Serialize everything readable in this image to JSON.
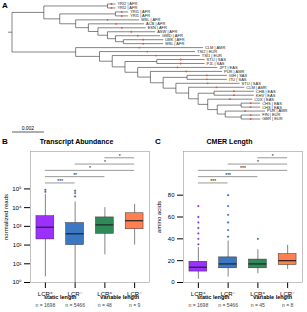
{
  "chart_data": [
    {
      "type": "tree",
      "panel": "A",
      "scale_bar": 0.002,
      "tree": {
        "children": [
          {
            "length": 0.002,
            "children": [
              {
                "length": 0.004,
                "children": [
                  {
                    "name": "YRI2 | AFR",
                    "length": 0.0005
                  },
                  {
                    "name": "YRI2 | AFR",
                    "length": 0.0005
                  }
                ]
              },
              {
                "length": 0.001,
                "children": [
                  {
                    "length": 0.0035,
                    "children": [
                      {
                        "name": "YRI1 | AFR",
                        "length": 0.0008
                      },
                      {
                        "name": "YRI1 | AFR",
                        "length": 0.0008
                      }
                    ]
                  },
                  {
                    "length": 0.001,
                    "children": [
                      {
                        "name": "MSL | AFR",
                        "length": 0.004
                      },
                      {
                        "length": 0.0008,
                        "children": [
                          {
                            "name": "ACB | AFR",
                            "length": 0.0035
                          },
                          {
                            "length": 0.0006,
                            "children": [
                              {
                                "name": "ESN | AFR",
                                "length": 0.003
                              },
                              {
                                "length": 0.0006,
                                "children": [
                                  {
                                    "name": "ASW | AFR",
                                    "length": 0.003
                                  },
                                  {
                                    "length": 0.0005,
                                    "children": [
                                      {
                                        "name": "GWD | AFR",
                                        "length": 0.0028
                                      },
                                      {
                                        "length": 0.0005,
                                        "children": [
                                          {
                                            "name": "LWK | AFR",
                                            "length": 0.0025
                                          },
                                          {
                                            "name": "MSL | AFR",
                                            "length": 0.0025
                                          }
                                        ]
                                      }
                                    ]
                                  }
                                ]
                              }
                            ]
                          }
                        ]
                      }
                    ]
                  }
                ]
              }
            ]
          },
          {
            "length": 0.004,
            "children": [
              {
                "name": "CLM | AMR",
                "length": 0.008
              },
              {
                "length": 0.0015,
                "children": [
                  {
                    "name": "TSI2 | EUR",
                    "length": 0.006
                  },
                  {
                    "length": 0.0008,
                    "children": [
                      {
                        "name": "TSI1 | EUR",
                        "length": 0.0055
                      },
                      {
                        "length": 0.0008,
                        "children": [
                          {
                            "length": 0.002,
                            "children": [
                              {
                                "name": "STU | SAS",
                                "length": 0.003
                              },
                              {
                                "name": "PJL | SAS",
                                "length": 0.003
                              }
                            ]
                          },
                          {
                            "length": 0.0008,
                            "children": [
                              {
                                "name": "JPT | EAS",
                                "length": 0.005
                              },
                              {
                                "length": 0.0008,
                                "children": [
                                  {
                                    "name": "PUR | AMR",
                                    "length": 0.0045
                                  },
                                  {
                                    "length": 0.0008,
                                    "children": [
                                      {
                                        "length": 0.0015,
                                        "children": [
                                          {
                                            "name": "GIH | SAS",
                                            "length": 0.0025
                                          },
                                          {
                                            "name": "ITU | SAS",
                                            "length": 0.0025
                                          }
                                        ]
                                      },
                                      {
                                        "length": 0.0008,
                                        "children": [
                                          {
                                            "name": "STU | SAS",
                                            "length": 0.004
                                          },
                                          {
                                            "length": 0.0008,
                                            "children": [
                                              {
                                                "name": "CLM | AMR",
                                                "length": 0.0035
                                              },
                                              {
                                                "length": 0.0006,
                                                "children": [
                                                  {
                                                    "length": 0.001,
                                                    "children": [
                                                      {
                                                        "name": "CHB | EAS",
                                                        "length": 0.0025
                                                      },
                                                      {
                                                        "name": "KHV | EAS",
                                                        "length": 0.0025
                                                      }
                                                    ]
                                                  },
                                                  {
                                                    "length": 0.0006,
                                                    "children": [
                                                      {
                                                        "name": "CDX | EAS",
                                                        "length": 0.0028
                                                      },
                                                      {
                                                        "length": 0.0006,
                                                        "children": [
                                                          {
                                                            "length": 0.0015,
                                                            "children": [
                                                              {
                                                                "name": "CHS | EAS",
                                                                "length": 0.0012
                                                              },
                                                              {
                                                                "name": "CHS | EAS",
                                                                "length": 0.0012
                                                              }
                                                            ]
                                                          },
                                                          {
                                                            "length": 0.0005,
                                                            "children": [
                                                              {
                                                                "name": "PUR | AMR",
                                                                "length": 0.0025
                                                              },
                                                              {
                                                                "length": 0.001,
                                                                "children": [
                                                                  {
                                                                    "name": "FIN | EUR",
                                                                    "length": 0.0012
                                                                  },
                                                                  {
                                                                    "name": "GBR | EUR",
                                                                    "length": 0.0012
                                                                  }
                                                                ]
                                                              }
                                                            ]
                                                          }
                                                        ]
                                                      }
                                                    ]
                                                  }
                                                ]
                                              }
                                            ]
                                          }
                                        ]
                                      }
                                    ]
                                  }
                                ]
                              }
                            ]
                          }
                        ]
                      }
                    ]
                  }
                ]
              }
            ]
          }
        ]
      }
    },
    {
      "type": "box",
      "panel": "B",
      "title": "Transcript Abundance",
      "y_label": "normalized reads",
      "log": "y",
      "ylim": [
        1,
        10000000
      ],
      "yticks": [
        {
          "value": 1,
          "label": "10⁰"
        },
        {
          "value": 10,
          "label": "10¹"
        },
        {
          "value": 100,
          "label": "10²"
        },
        {
          "value": 1000,
          "label": "10³"
        },
        {
          "value": 10000,
          "label": "10⁴"
        },
        {
          "value": 100000,
          "label": "10⁵"
        }
      ],
      "categories": [
        "LCR⁺",
        "LCR⁻",
        "LCR⁺",
        "LCR⁻"
      ],
      "groups": [
        "static length",
        "static length",
        "variable length",
        "variable length"
      ],
      "n_labels": [
        "n = 1698",
        "n = 5466",
        "n = 48",
        "n = 9"
      ],
      "colors": [
        "#9b30ff",
        "#3b78c4",
        "#2e8b57",
        "#ff7f50"
      ],
      "boxes": [
        {
          "whisker_low": 2,
          "q1": 200,
          "median": 900,
          "q3": 3500,
          "whisker_high": 50000,
          "outliers": [
            70000,
            90000
          ]
        },
        {
          "whisker_low": 1,
          "q1": 100,
          "median": 400,
          "q3": 1500,
          "whisker_high": 20000,
          "outliers": [
            40000,
            60000,
            80000
          ]
        },
        {
          "whisker_low": 30,
          "q1": 400,
          "median": 1200,
          "q3": 3000,
          "whisker_high": 10000,
          "outliers": []
        },
        {
          "whisker_low": 100,
          "q1": 700,
          "median": 2000,
          "q3": 5000,
          "whisker_high": 15000,
          "outliers": []
        }
      ],
      "comparisons": [
        {
          "from": 0,
          "to": 1,
          "label": "***"
        },
        {
          "from": 0,
          "to": 2,
          "label": "**"
        },
        {
          "from": 0,
          "to": 3,
          "label": "*"
        },
        {
          "from": 1,
          "to": 3,
          "label": "*"
        },
        {
          "from": 2,
          "to": 3,
          "label": "*"
        }
      ]
    },
    {
      "type": "box",
      "panel": "C",
      "title": "CMER Length",
      "y_label": "amino acids",
      "ylim": [
        0,
        120
      ],
      "yticks": [
        0,
        20,
        40,
        60,
        80
      ],
      "categories": [
        "LCR⁺",
        "LCR⁻",
        "LCR⁺",
        "LCR⁻"
      ],
      "groups": [
        "static length",
        "static length",
        "variable length",
        "variable length"
      ],
      "n_labels": [
        "n = 1698",
        "n = 5466",
        "n = 45",
        "n = 8"
      ],
      "colors": [
        "#9b30ff",
        "#3b78c4",
        "#2e8b57",
        "#ff7f50"
      ],
      "boxes": [
        {
          "whisker_low": 3,
          "q1": 10,
          "median": 14,
          "q3": 19,
          "whisker_high": 32,
          "outliers": [
            35,
            40,
            45,
            50,
            55,
            60,
            70
          ]
        },
        {
          "whisker_low": 5,
          "q1": 13,
          "median": 17,
          "q3": 23,
          "whisker_high": 38,
          "outliers": [
            42,
            48,
            55,
            62,
            70,
            80
          ]
        },
        {
          "whisker_low": 8,
          "q1": 13,
          "median": 17,
          "q3": 21,
          "whisker_high": 30,
          "outliers": [
            40
          ]
        },
        {
          "whisker_low": 12,
          "q1": 16,
          "median": 20,
          "q3": 26,
          "whisker_high": 34,
          "outliers": []
        }
      ],
      "comparisons": [
        {
          "from": 0,
          "to": 1,
          "label": "***"
        },
        {
          "from": 0,
          "to": 2,
          "label": "***"
        },
        {
          "from": 0,
          "to": 3,
          "label": "***"
        },
        {
          "from": 1,
          "to": 3,
          "label": "*"
        },
        {
          "from": 2,
          "to": 3,
          "label": "*"
        }
      ]
    }
  ]
}
